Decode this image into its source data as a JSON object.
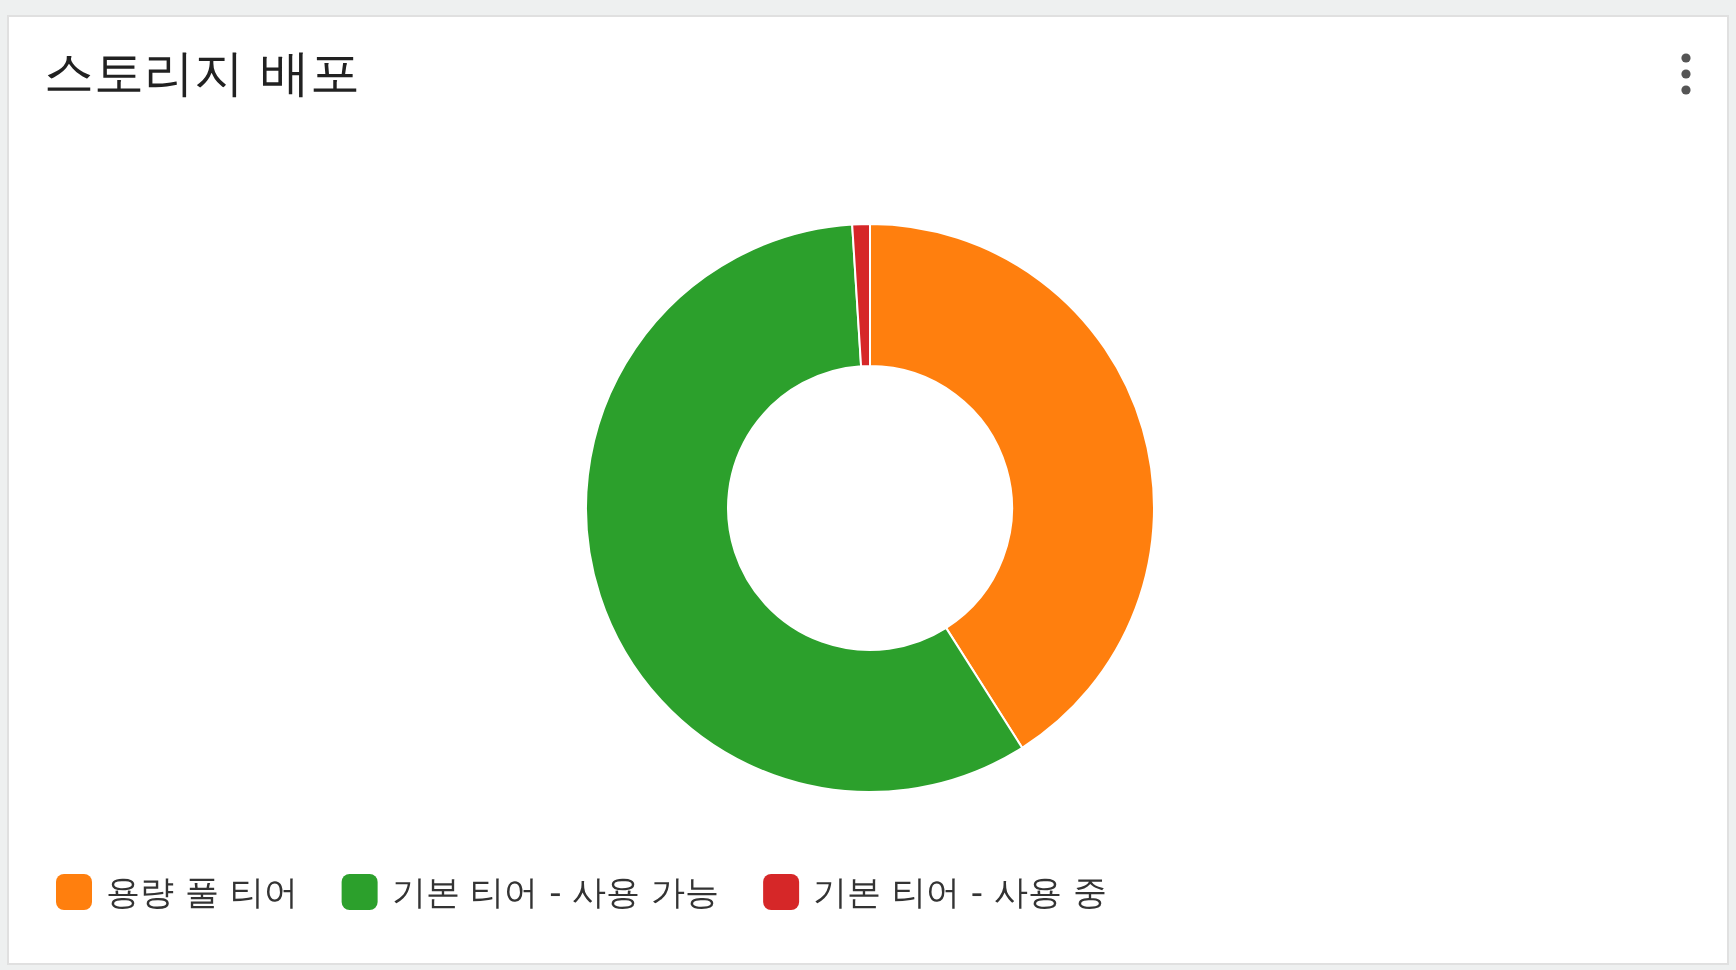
{
  "chart_data": {
    "type": "donut",
    "title": "스토리지 배포",
    "categories": [
      "용량 풀 티어",
      "기본 티어 - 사용 가능",
      "기본 티어 - 사용 중"
    ],
    "values": [
      41,
      58,
      1
    ],
    "colors": [
      "#ff7f0e",
      "#2ca02c",
      "#d62728"
    ],
    "legend": "bottom left"
  }
}
